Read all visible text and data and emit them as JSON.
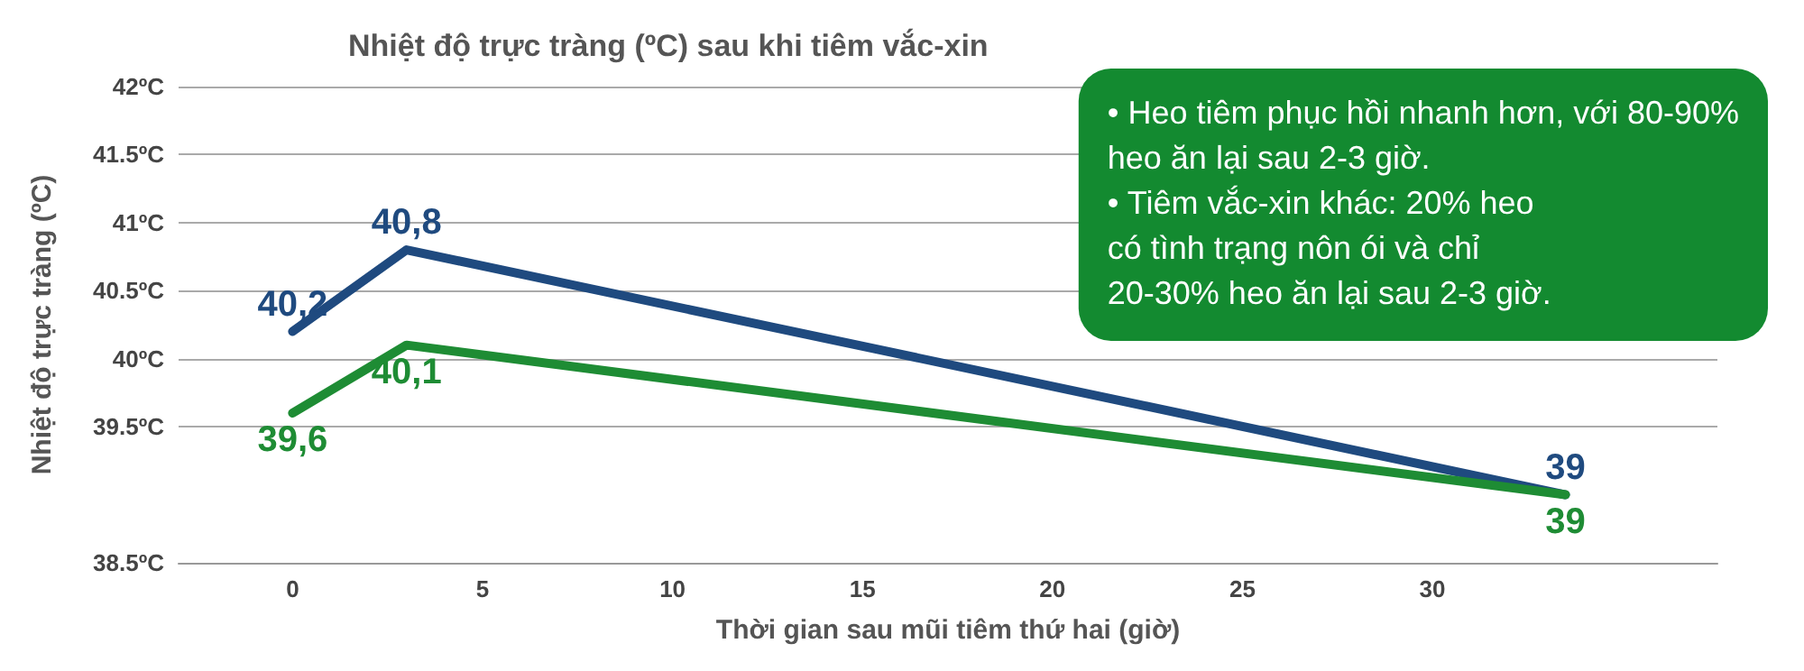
{
  "chart_data": {
    "type": "line",
    "title": "Nhiệt độ trực tràng (ºC) sau khi tiêm vắc-xin",
    "xlabel": "Thời gian sau mũi tiêm thứ hai (giờ)",
    "ylabel": "Nhiệt độ trực tràng (ºC)",
    "x": [
      0,
      3,
      33.5
    ],
    "series": [
      {
        "color": "#1f4a7f",
        "values": [
          40.2,
          40.8,
          39
        ],
        "value_labels": [
          "40,2",
          "40,8",
          "39"
        ]
      },
      {
        "color": "#1e8c34",
        "values": [
          39.6,
          40.1,
          39
        ],
        "value_labels": [
          "39,6",
          "40,1",
          "39"
        ]
      }
    ],
    "xlim": [
      -3,
      37.5
    ],
    "xticks": [
      0,
      5,
      10,
      15,
      20,
      25,
      30
    ],
    "ylim": [
      38.5,
      42
    ],
    "yticks": [
      {
        "value": 38.5,
        "label": "38.5ºC"
      },
      {
        "value": 39.5,
        "label": "39.5ºC"
      },
      {
        "value": 40,
        "label": "40ºC"
      },
      {
        "value": 40.5,
        "label": "40.5ºC"
      },
      {
        "value": 41,
        "label": "41ºC"
      },
      {
        "value": 41.5,
        "label": "41.5ºC"
      },
      {
        "value": 42,
        "label": "42ºC"
      }
    ],
    "grid": "y",
    "marker": "none",
    "line_style": "solid",
    "annotations": [
      "• Heo tiêm phục hồi nhanh hơn, với 80-90%\nheo ăn lại sau 2-3 giờ.",
      "• Tiêm vắc-xin khác: 20% heo\ncó tình trạng nôn ói và chỉ\n20-30% heo ăn lại sau 2-3 giờ."
    ]
  }
}
